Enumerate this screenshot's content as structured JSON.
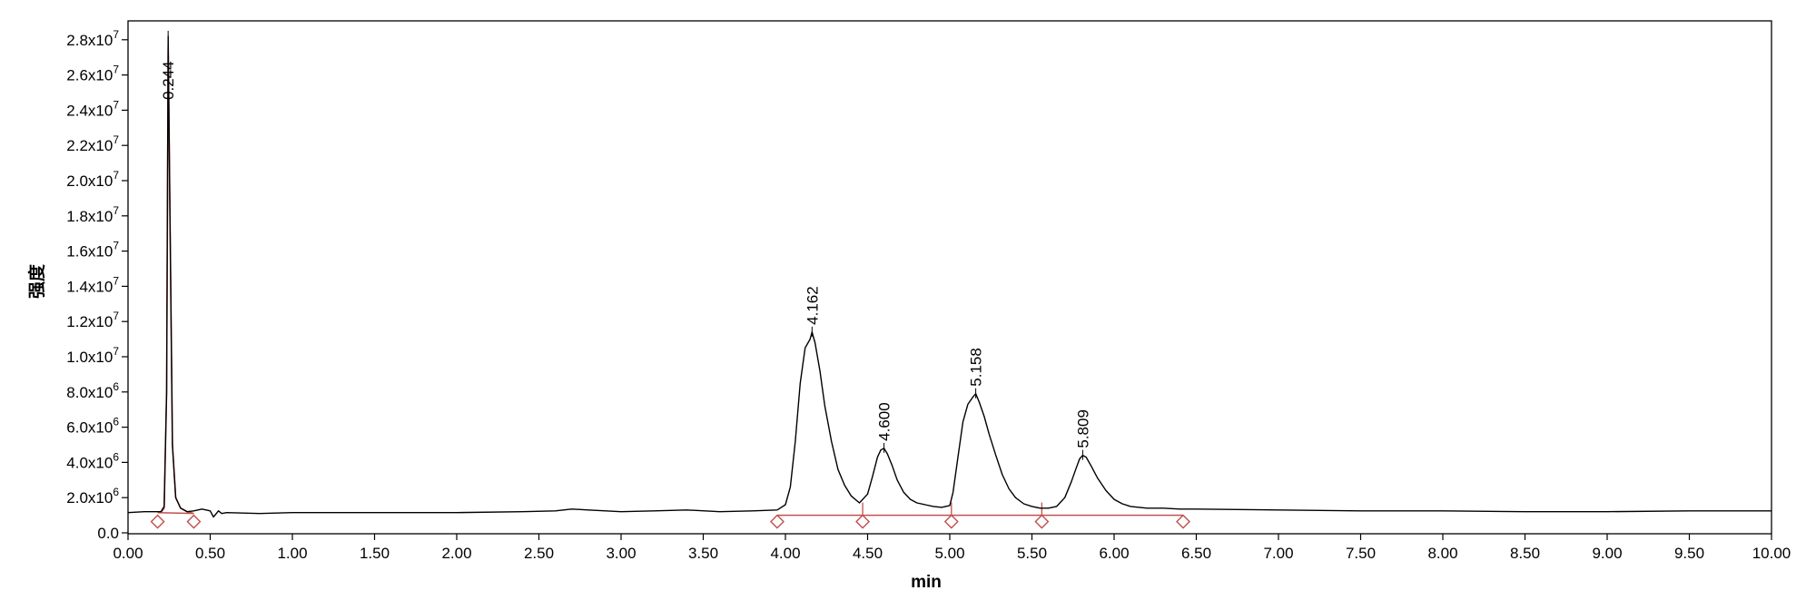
{
  "chart_data": {
    "type": "line",
    "title": "",
    "xlabel": "min",
    "ylabel": "强度",
    "xlim": [
      0,
      10
    ],
    "ylim": [
      0,
      28500000.0
    ],
    "grid": false,
    "x_ticks": [
      {
        "value": 0.0,
        "label": "0.00"
      },
      {
        "value": 0.5,
        "label": "0.50"
      },
      {
        "value": 1.0,
        "label": "1.00"
      },
      {
        "value": 1.5,
        "label": "1.50"
      },
      {
        "value": 2.0,
        "label": "2.00"
      },
      {
        "value": 2.5,
        "label": "2.50"
      },
      {
        "value": 3.0,
        "label": "3.00"
      },
      {
        "value": 3.5,
        "label": "3.50"
      },
      {
        "value": 4.0,
        "label": "4.00"
      },
      {
        "value": 4.5,
        "label": "4.50"
      },
      {
        "value": 5.0,
        "label": "5.00"
      },
      {
        "value": 5.5,
        "label": "5.50"
      },
      {
        "value": 6.0,
        "label": "6.00"
      },
      {
        "value": 6.5,
        "label": "6.50"
      },
      {
        "value": 7.0,
        "label": "7.00"
      },
      {
        "value": 7.5,
        "label": "7.50"
      },
      {
        "value": 8.0,
        "label": "8.00"
      },
      {
        "value": 8.5,
        "label": "8.50"
      },
      {
        "value": 9.0,
        "label": "9.00"
      },
      {
        "value": 9.5,
        "label": "9.50"
      },
      {
        "value": 10.0,
        "label": "10.00"
      }
    ],
    "y_ticks": [
      {
        "value": 0,
        "label": "0.0",
        "mant": "0.0",
        "exp": ""
      },
      {
        "value": 2000000,
        "label": "2.0x10^6",
        "mant": "2.0x10",
        "exp": "6"
      },
      {
        "value": 4000000,
        "label": "4.0x10^6",
        "mant": "4.0x10",
        "exp": "6"
      },
      {
        "value": 6000000,
        "label": "6.0x10^6",
        "mant": "6.0x10",
        "exp": "6"
      },
      {
        "value": 8000000,
        "label": "8.0x10^6",
        "mant": "8.0x10",
        "exp": "6"
      },
      {
        "value": 10000000,
        "label": "1.0x10^7",
        "mant": "1.0x10",
        "exp": "7"
      },
      {
        "value": 12000000,
        "label": "1.2x10^7",
        "mant": "1.2x10",
        "exp": "7"
      },
      {
        "value": 14000000,
        "label": "1.4x10^7",
        "mant": "1.4x10",
        "exp": "7"
      },
      {
        "value": 16000000,
        "label": "1.6x10^7",
        "mant": "1.6x10",
        "exp": "7"
      },
      {
        "value": 18000000,
        "label": "1.8x10^7",
        "mant": "1.8x10",
        "exp": "7"
      },
      {
        "value": 20000000,
        "label": "2.0x10^7",
        "mant": "2.0x10",
        "exp": "7"
      },
      {
        "value": 22000000,
        "label": "2.2x10^7",
        "mant": "2.2x10",
        "exp": "7"
      },
      {
        "value": 24000000,
        "label": "2.4x10^7",
        "mant": "2.4x10",
        "exp": "7"
      },
      {
        "value": 26000000,
        "label": "2.6x10^7",
        "mant": "2.6x10",
        "exp": "7"
      },
      {
        "value": 28000000,
        "label": "2.8x10^7",
        "mant": "2.8x10",
        "exp": "7"
      }
    ],
    "series": [
      {
        "color": "#000000",
        "x": [
          0.0,
          0.1,
          0.2,
          0.22,
          0.235,
          0.244,
          0.255,
          0.27,
          0.29,
          0.32,
          0.36,
          0.4,
          0.45,
          0.5,
          0.52,
          0.55,
          0.57,
          0.6,
          0.8,
          1.0,
          1.5,
          2.0,
          2.4,
          2.6,
          2.7,
          2.8,
          3.0,
          3.2,
          3.4,
          3.6,
          3.8,
          3.95,
          4.0,
          4.03,
          4.06,
          4.09,
          4.12,
          4.15,
          4.162,
          4.18,
          4.21,
          4.24,
          4.28,
          4.32,
          4.36,
          4.4,
          4.45,
          4.5,
          4.53,
          4.56,
          4.58,
          4.6,
          4.62,
          4.65,
          4.68,
          4.72,
          4.76,
          4.8,
          4.85,
          4.9,
          4.95,
          5.0,
          5.02,
          5.05,
          5.08,
          5.11,
          5.14,
          5.158,
          5.18,
          5.21,
          5.24,
          5.28,
          5.32,
          5.36,
          5.4,
          5.45,
          5.5,
          5.55,
          5.6,
          5.65,
          5.7,
          5.74,
          5.77,
          5.79,
          5.809,
          5.83,
          5.86,
          5.9,
          5.95,
          6.0,
          6.05,
          6.1,
          6.2,
          6.3,
          6.4,
          6.5,
          7.0,
          7.5,
          8.0,
          8.5,
          9.0,
          9.5,
          10.0
        ],
        "y": [
          1150000,
          1200000,
          1200000,
          1500000,
          8000000,
          28200000,
          18000000,
          5000000,
          2000000,
          1400000,
          1200000,
          1250000,
          1350000,
          1250000,
          900000,
          1250000,
          1100000,
          1150000,
          1100000,
          1150000,
          1150000,
          1150000,
          1200000,
          1250000,
          1350000,
          1300000,
          1200000,
          1250000,
          1300000,
          1200000,
          1250000,
          1300000,
          1600000,
          2600000,
          5200000,
          8500000,
          10500000,
          11000000,
          11400000,
          10800000,
          9200000,
          7200000,
          5200000,
          3600000,
          2700000,
          2100000,
          1700000,
          2200000,
          3200000,
          4300000,
          4700000,
          4800000,
          4500000,
          3800000,
          3000000,
          2300000,
          1900000,
          1700000,
          1600000,
          1500000,
          1450000,
          1550000,
          2300000,
          4300000,
          6300000,
          7300000,
          7700000,
          7900000,
          7400000,
          6600000,
          5600000,
          4400000,
          3300000,
          2500000,
          2000000,
          1650000,
          1500000,
          1400000,
          1400000,
          1500000,
          2000000,
          2900000,
          3700000,
          4200000,
          4400000,
          4300000,
          3800000,
          3100000,
          2400000,
          1900000,
          1650000,
          1500000,
          1400000,
          1400000,
          1350000,
          1350000,
          1300000,
          1250000,
          1250000,
          1200000,
          1200000,
          1250000,
          1250000
        ]
      }
    ],
    "integration": {
      "color": "#c0504d",
      "peak1": {
        "x": [
          0.2,
          0.22,
          0.235,
          0.244,
          0.255,
          0.27,
          0.29,
          0.32,
          0.36,
          0.4
        ],
        "y": [
          1150000,
          1400000,
          8000000,
          27600000,
          18000000,
          5000000,
          2000000,
          1400000,
          1200000,
          1100000
        ]
      },
      "baselines": [
        {
          "x1": 0.18,
          "y1": 1150000,
          "x2": 0.4,
          "y2": 1100000
        },
        {
          "x1": 3.95,
          "y1": 1000000,
          "x2": 6.42,
          "y2": 1000000
        }
      ],
      "markers": [
        0.18,
        0.4,
        3.95,
        4.47,
        5.01,
        5.56,
        6.42
      ],
      "dividers": [
        4.47,
        5.01,
        5.56
      ]
    },
    "peaks": [
      {
        "x": 0.244,
        "y": 28200000,
        "label": "0.244"
      },
      {
        "x": 4.162,
        "y": 11400000,
        "label": "4.162"
      },
      {
        "x": 4.6,
        "y": 4800000,
        "label": "4.600"
      },
      {
        "x": 5.158,
        "y": 7900000,
        "label": "5.158"
      },
      {
        "x": 5.809,
        "y": 4400000,
        "label": "5.809"
      }
    ]
  }
}
